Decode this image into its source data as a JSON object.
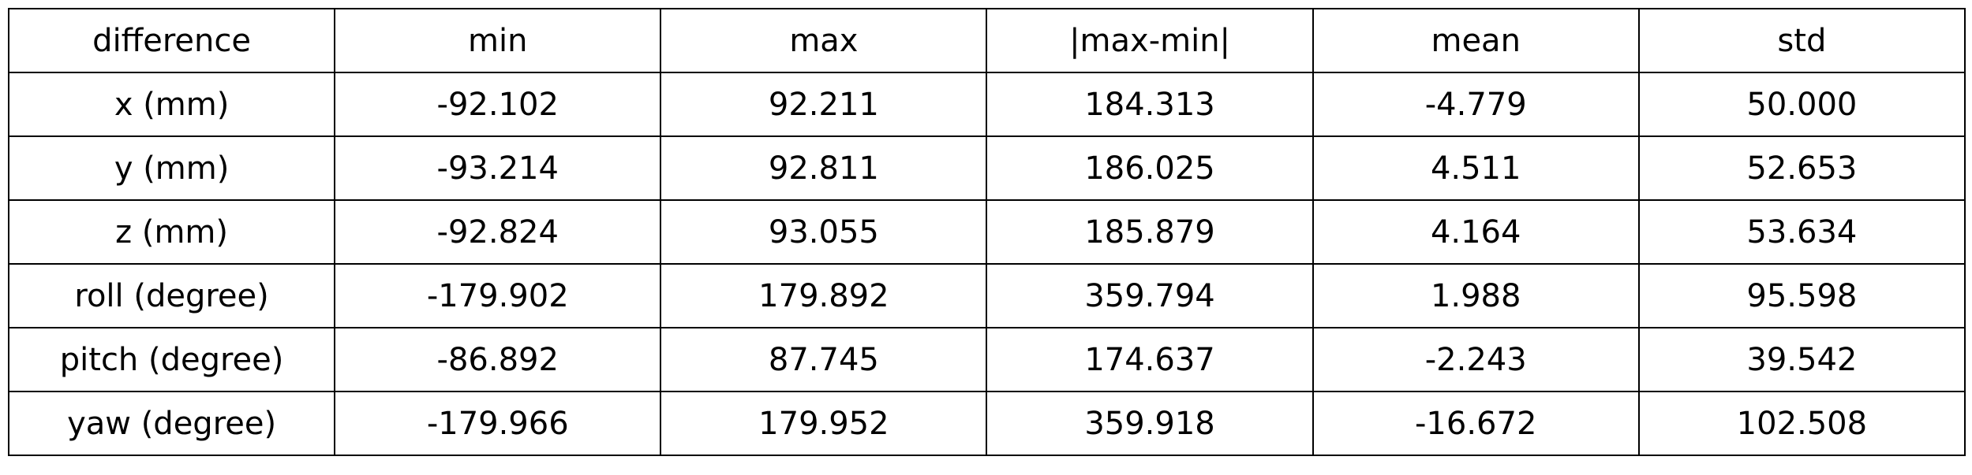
{
  "table": {
    "headers": [
      "difference",
      "min",
      "max",
      "|max-min|",
      "mean",
      "std"
    ],
    "rows": [
      [
        "x (mm)",
        "-92.102",
        "92.211",
        "184.313",
        "-4.779",
        "50.000"
      ],
      [
        "y (mm)",
        "-93.214",
        "92.811",
        "186.025",
        "4.511",
        "52.653"
      ],
      [
        "z (mm)",
        "-92.824",
        "93.055",
        "185.879",
        "4.164",
        "53.634"
      ],
      [
        "roll (degree)",
        "-179.902",
        "179.892",
        "359.794",
        "1.988",
        "95.598"
      ],
      [
        "pitch (degree)",
        "-86.892",
        "87.745",
        "174.637",
        "-2.243",
        "39.542"
      ],
      [
        "yaw (degree)",
        "-179.966",
        "179.952",
        "359.918",
        "-16.672",
        "102.508"
      ]
    ]
  },
  "colors": {
    "border": "#000000",
    "text": "#000000",
    "background": "#ffffff"
  }
}
